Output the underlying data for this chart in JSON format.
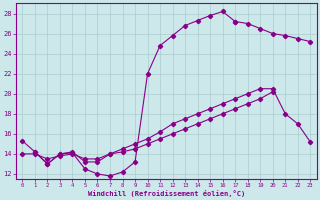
{
  "background_color": "#cce8ea",
  "grid_color": "#aacccc",
  "line_color": "#880088",
  "xlabel": "Windchill (Refroidissement éolien,°C)",
  "xlim_min": -0.5,
  "xlim_max": 23.5,
  "ylim_min": 11.5,
  "ylim_max": 29.0,
  "yticks": [
    12,
    14,
    16,
    18,
    20,
    22,
    24,
    26,
    28
  ],
  "xticks": [
    0,
    1,
    2,
    3,
    4,
    5,
    6,
    7,
    8,
    9,
    10,
    11,
    12,
    13,
    14,
    15,
    16,
    17,
    18,
    19,
    20,
    21,
    22,
    23
  ],
  "curve_upper_x": [
    0,
    1,
    2,
    3,
    4,
    5,
    6,
    7,
    8,
    9,
    10,
    11,
    12,
    13,
    14,
    15,
    16,
    17
  ],
  "curve_upper_y": [
    15.3,
    14.2,
    13.0,
    14.0,
    14.1,
    12.5,
    12.0,
    11.8,
    12.2,
    13.2,
    22.0,
    24.8,
    25.8,
    26.8,
    27.3,
    27.8,
    28.2,
    27.2
  ],
  "curve_right_x": [
    17,
    18,
    19,
    20,
    21,
    22,
    23
  ],
  "curve_right_y": [
    27.2,
    27.0,
    26.5,
    26.0,
    25.8,
    25.5,
    25.2
  ],
  "curve_mid_x": [
    0,
    1,
    2,
    3,
    4,
    5,
    6,
    7,
    8,
    9,
    10,
    11,
    12,
    13,
    14,
    15,
    16,
    17,
    18,
    19,
    20,
    21,
    22,
    23
  ],
  "curve_mid_y": [
    14.0,
    14.0,
    13.5,
    13.8,
    14.0,
    13.5,
    13.5,
    14.0,
    14.5,
    15.0,
    15.5,
    16.2,
    17.0,
    17.5,
    18.0,
    18.5,
    19.0,
    19.5,
    20.0,
    20.5,
    20.5,
    18.0,
    17.0,
    15.2
  ],
  "curve_low_x": [
    1,
    2,
    3,
    4,
    5,
    6,
    7,
    8,
    9,
    10,
    11,
    12,
    13,
    14,
    15,
    16,
    17,
    18,
    19,
    20,
    21,
    22,
    23
  ],
  "curve_low_y": [
    14.2,
    13.0,
    14.0,
    14.2,
    13.2,
    13.2,
    14.0,
    14.2,
    14.5,
    15.0,
    15.5,
    16.0,
    16.5,
    17.0,
    17.5,
    18.0,
    18.5,
    19.0,
    19.5,
    20.2,
    null,
    null,
    null
  ]
}
